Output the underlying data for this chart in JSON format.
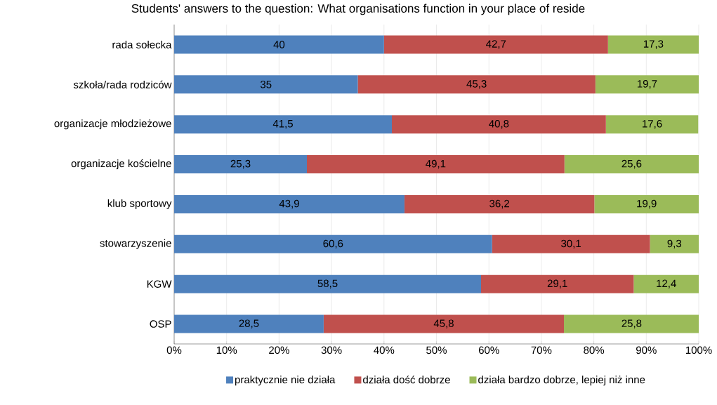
{
  "chart_data": {
    "type": "bar",
    "orientation": "horizontal",
    "stacked": true,
    "title": "Students' answers to the question: What organisations function in your place of reside",
    "categories": [
      "rada sołecka",
      "szkoła/rada rodziców",
      "organizacje młodzieżowe",
      "organizacje kościelne",
      "klub sportowy",
      "stowarzyszenie",
      "KGW",
      "OSP"
    ],
    "series": [
      {
        "name": "praktycznie nie działa",
        "color": "#4f81bd",
        "values": [
          40,
          35,
          41.5,
          25.3,
          43.9,
          60.6,
          58.5,
          28.5
        ],
        "value_labels": [
          "40",
          "35",
          "41,5",
          "25,3",
          "43,9",
          "60,6",
          "58,5",
          "28,5"
        ]
      },
      {
        "name": "działa dość dobrze",
        "color": "#c0504d",
        "values": [
          42.7,
          45.3,
          40.8,
          49.1,
          36.2,
          30.1,
          29.1,
          45.8
        ],
        "value_labels": [
          "42,7",
          "45,3",
          "40,8",
          "49,1",
          "36,2",
          "30,1",
          "29,1",
          "45,8"
        ]
      },
      {
        "name": "działa bardzo dobrze, lepiej niż inne",
        "color": "#9bbb59",
        "values": [
          17.3,
          19.7,
          17.6,
          25.6,
          19.9,
          9.3,
          12.4,
          25.8
        ],
        "value_labels": [
          "17,3",
          "19,7",
          "17,6",
          "25,6",
          "19,9",
          "9,3",
          "12,4",
          "25,8"
        ]
      }
    ],
    "xlim": [
      0,
      100
    ],
    "xticks": [
      {
        "value": 0,
        "label": "0%"
      },
      {
        "value": 10,
        "label": "10%"
      },
      {
        "value": 20,
        "label": "20%"
      },
      {
        "value": 30,
        "label": "30%"
      },
      {
        "value": 40,
        "label": "40%"
      },
      {
        "value": 50,
        "label": "50%"
      },
      {
        "value": 60,
        "label": "60%"
      },
      {
        "value": 70,
        "label": "70%"
      },
      {
        "value": 80,
        "label": "80%"
      },
      {
        "value": 90,
        "label": "90%"
      },
      {
        "value": 100,
        "label": "100%"
      }
    ],
    "grid": "x",
    "legend": "bottom"
  }
}
